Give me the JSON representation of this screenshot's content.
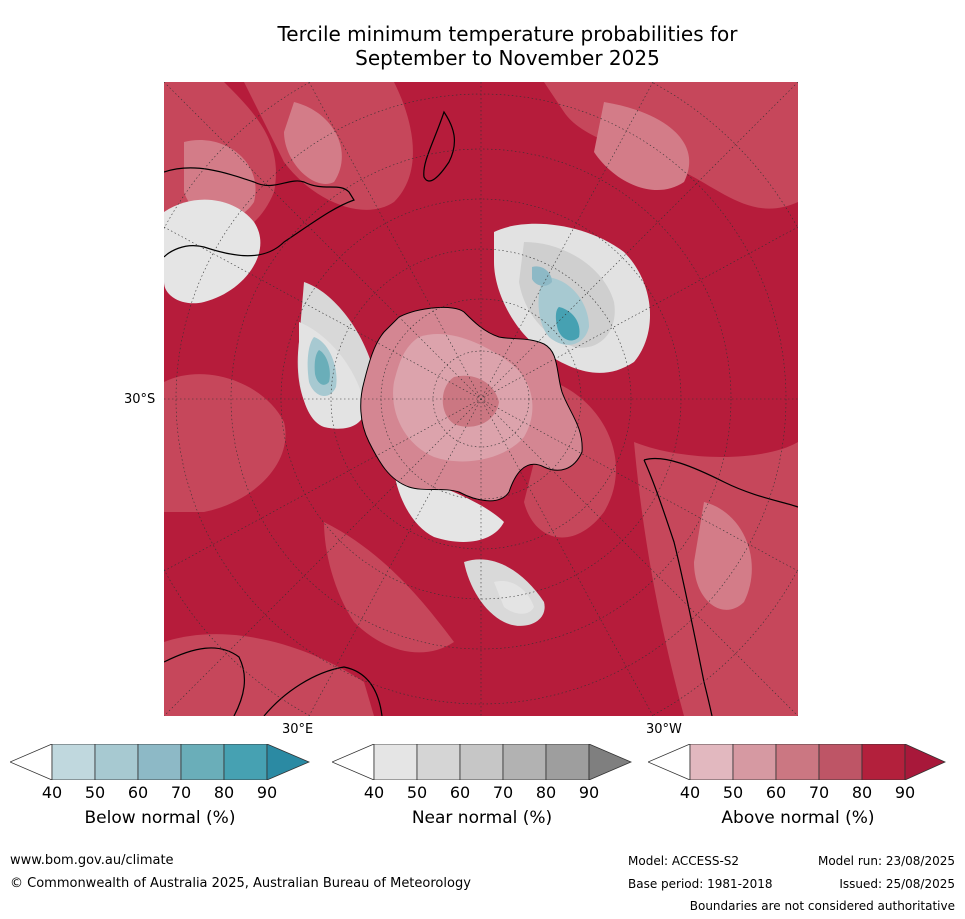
{
  "title_line1": "Tercile minimum temperature probabilities for",
  "title_line2": "September to November 2025",
  "axis_labels": {
    "lat": "30°S",
    "lon_east": "30°E",
    "lon_west": "30°W"
  },
  "colors": {
    "above": [
      "#e2b8bf",
      "#d699a2",
      "#cb7782",
      "#be5566",
      "#b3203c"
    ],
    "near": [
      "#e5e5e5",
      "#d5d5d5",
      "#c6c6c6",
      "#b2b2b2",
      "#9e9e9e",
      "#7f7f7f"
    ],
    "below": [
      "#c0d8de",
      "#a7c9d1",
      "#8db9c6",
      "#6aaeb9",
      "#46a1b2",
      "#2b8aa3"
    ]
  },
  "colorbars": [
    {
      "label": "Below normal (%)",
      "ticks": [
        "40",
        "50",
        "60",
        "70",
        "80",
        "90"
      ]
    },
    {
      "label": "Near normal (%)",
      "ticks": [
        "40",
        "50",
        "60",
        "70",
        "80",
        "90"
      ]
    },
    {
      "label": "Above normal (%)",
      "ticks": [
        "40",
        "50",
        "60",
        "70",
        "80",
        "90"
      ]
    }
  ],
  "footer": {
    "url": "www.bom.gov.au/climate",
    "copyright": "© Commonwealth of Australia 2025, Australian Bureau of Meteorology",
    "model": "Model: ACCESS-S2",
    "model_run": "Model run: 23/08/2025",
    "base_period": "Base period: 1981-2018",
    "issued": "Issued: 25/08/2025",
    "disclaimer": "Boundaries are not considered authoritative"
  }
}
